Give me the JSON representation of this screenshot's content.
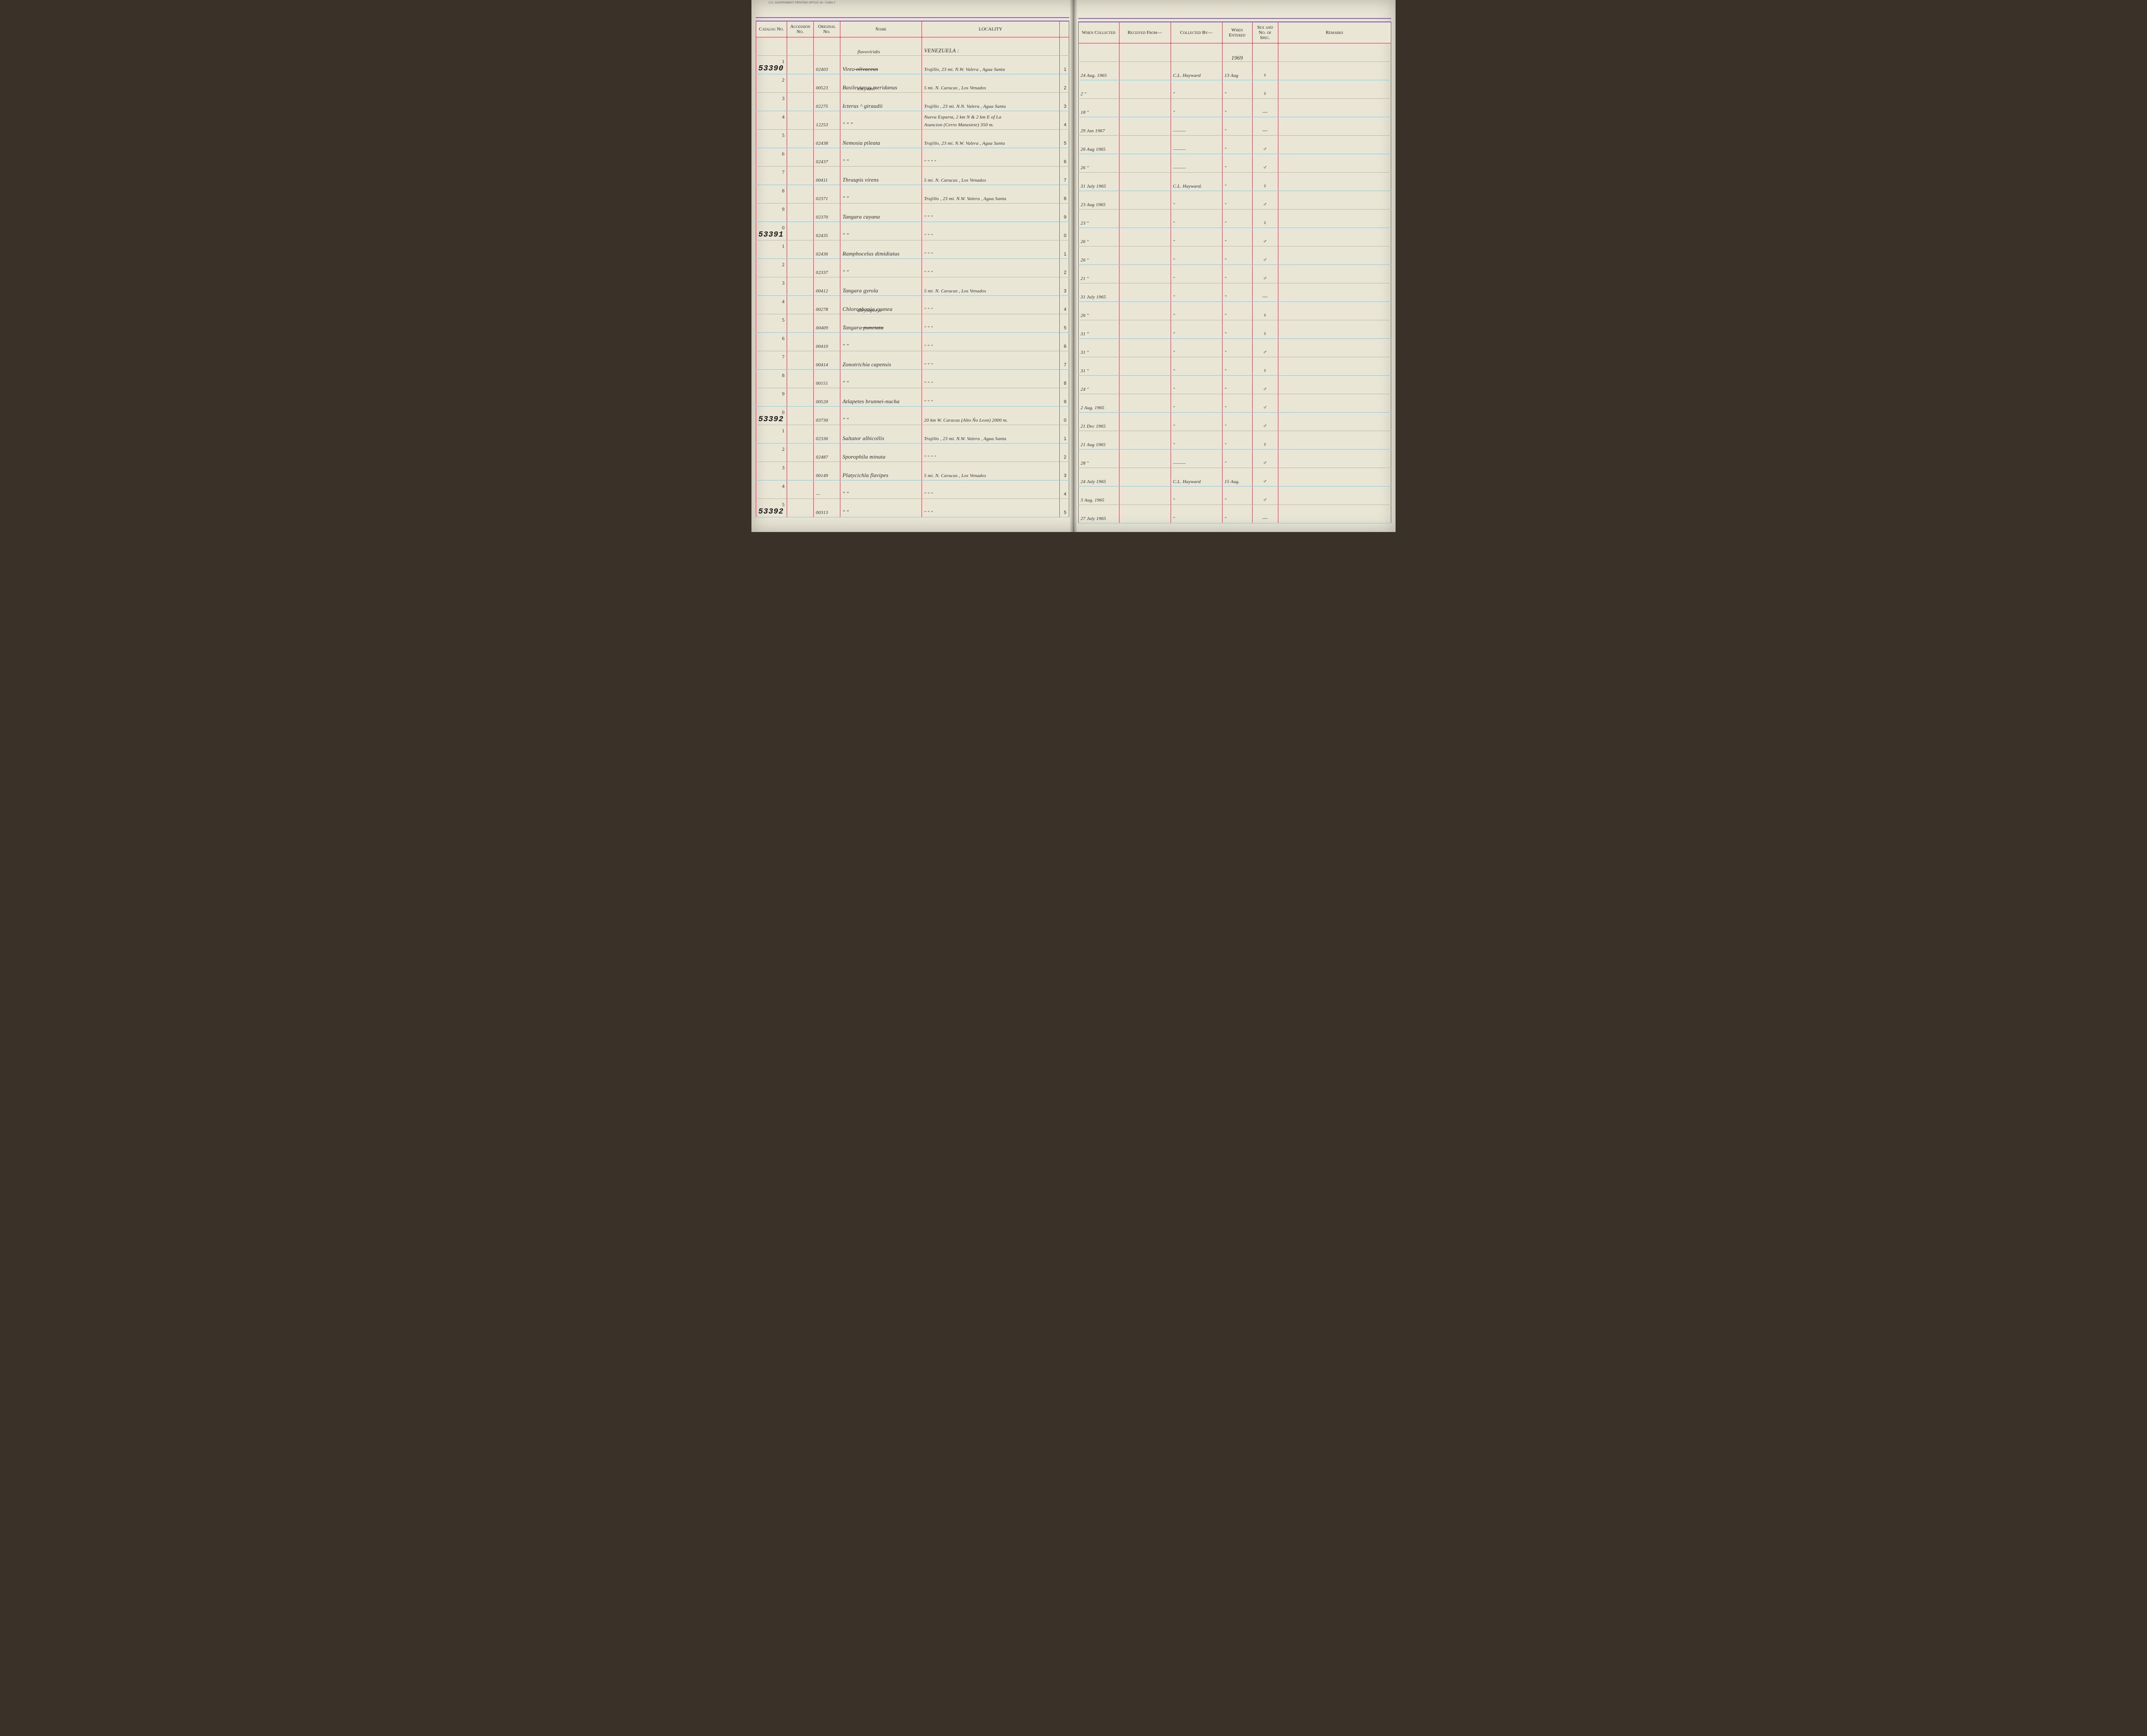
{
  "printer_line": "U.S. GOVERNMENT PRINTING OFFICE   16—72394-2",
  "left_headers": {
    "catalog": "Catalog\nNo.",
    "accession": "Accession\nNo.",
    "original": "Original\nNo.",
    "name": "Name",
    "locality": "LOCALITY",
    "count": ""
  },
  "right_headers": {
    "when_collected": "When\nCollected",
    "received_from": "Received From—",
    "collected_by": "Collected By—",
    "when_entered": "When\nEntered",
    "sex": "Sex and\nNo. of\nSpec.",
    "remarks": "Remarks"
  },
  "locality_header_note": "VENEZUELA :",
  "year_entered": "1969",
  "rows": [
    {
      "catalog": "53390",
      "digit": "1",
      "orig": "02403",
      "name_strike": "olivaceus",
      "name_top": "flavoviridis",
      "name": "Vireo",
      "locality": "Trujillo, 23 mi. N.W. Valera , Agua Santa",
      "ct": "1",
      "when": "24 Aug. 1965",
      "recv": "",
      "coll": "C.L. Hayward",
      "ent": "13 Aug",
      "sex": "♀"
    },
    {
      "catalog": "",
      "digit": "2",
      "orig": "00523",
      "name": "Basileuterus meridanus",
      "locality": "5 mi. N. Caracas , Los Venados",
      "ct": "2",
      "when": "2   \"",
      "recv": "",
      "coll": "\"",
      "ent": "\"",
      "sex": "♀"
    },
    {
      "catalog": "",
      "digit": "3",
      "orig": "02275",
      "name_top": "chrysater",
      "name": "Icterus ^ giraudii",
      "locality": "Trujillo , 23 mi. N.N. Valera , Agua Santa",
      "ct": "3",
      "when": "18  \"",
      "recv": "",
      "coll": "\"",
      "ent": "\"",
      "sex": "—"
    },
    {
      "catalog": "",
      "digit": "4",
      "orig": "12253",
      "name": "\"     \"     \"",
      "locality": "Nueva Esparta, 2 km N & 2 km E of La\nAsuncion (Cerro Matasiete) 350 m.",
      "ct": "4",
      "when": "29 Jan 1967",
      "recv": "",
      "coll": "———",
      "ent": "\"",
      "sex": "—"
    },
    {
      "catalog": "",
      "digit": "5",
      "orig": "02438",
      "name": "Nemosia pileata",
      "locality": "Trujillo, 23 mi. N.W. Valera , Agua Santa",
      "ct": "5",
      "when": "26 Aug 1965",
      "recv": "",
      "coll": "———",
      "ent": "\"",
      "sex": "♂"
    },
    {
      "catalog": "",
      "digit": "6",
      "orig": "02437",
      "name": "\"        \"",
      "locality": "\"             \"             \"           \"",
      "ct": "6",
      "when": "26   \"",
      "recv": "",
      "coll": "———",
      "ent": "\"",
      "sex": "♂"
    },
    {
      "catalog": "",
      "digit": "7",
      "orig": "00411",
      "name": "Thraupis virens",
      "locality": "5 mi. N. Caracas , Los Venados",
      "ct": "7",
      "when": "31 July 1965",
      "recv": "",
      "coll": "C.L. Hayward.",
      "ent": "\"",
      "sex": "♀"
    },
    {
      "catalog": "",
      "digit": "8",
      "orig": "02371",
      "name": "\"        \"",
      "locality": "Trujillo , 23 mi. N.W. Valera , Agua Santa",
      "ct": "8",
      "when": "23 Aug 1965",
      "recv": "",
      "coll": "\"",
      "ent": "\"",
      "sex": "♂"
    },
    {
      "catalog": "",
      "digit": "9",
      "orig": "02370",
      "name": "Tangara cayana",
      "locality": "\"             \"             \"",
      "ct": "9",
      "when": "23  \"",
      "recv": "",
      "coll": "\"",
      "ent": "\"",
      "sex": "♀"
    },
    {
      "catalog": "53391",
      "digit": "0",
      "orig": "02435",
      "name": "\"        \"",
      "locality": "\"             \"             \"",
      "ct": "0",
      "when": "26   \"",
      "recv": "",
      "coll": "\"",
      "ent": "\"",
      "sex": "♂"
    },
    {
      "catalog": "",
      "digit": "1",
      "orig": "02436",
      "name": "Ramphocelus dimidiatus",
      "locality": "\"             \"             \"",
      "ct": "1",
      "when": "26   \"",
      "recv": "",
      "coll": "\"",
      "ent": "\"",
      "sex": "♂"
    },
    {
      "catalog": "",
      "digit": "2",
      "orig": "02337",
      "name": "\"        \"",
      "locality": "\"             \"             \"",
      "ct": "2",
      "when": "21   \"",
      "recv": "",
      "coll": "\"",
      "ent": "\"",
      "sex": "♂"
    },
    {
      "catalog": "",
      "digit": "3",
      "orig": "00412",
      "name": "Tangara gyrola",
      "locality": "5 mi. N. Caracas , Los Venados",
      "ct": "3",
      "when": "31 July 1965",
      "recv": "",
      "coll": "\"",
      "ent": "\"",
      "sex": "—"
    },
    {
      "catalog": "",
      "digit": "4",
      "orig": "00278",
      "name": "Chlorophonia cyanea",
      "locality": "\"             \"             \"",
      "ct": "4",
      "when": "26   \"",
      "recv": "",
      "coll": "\"",
      "ent": "\"",
      "sex": "♀"
    },
    {
      "catalog": "",
      "digit": "5",
      "orig": "00409",
      "name_top": "chrysophrys",
      "name_strike": "punctata",
      "name": "Tangara",
      "locality": "\"             \"             \"",
      "ct": "5",
      "when": "31   \"",
      "recv": "",
      "coll": "\"",
      "ent": "\"",
      "sex": "♀"
    },
    {
      "catalog": "",
      "digit": "6",
      "orig": "00410",
      "name": "\"        \"",
      "locality": "\"             \"             \"",
      "ct": "6",
      "when": "31   \"",
      "recv": "",
      "coll": "\"",
      "ent": "\"",
      "sex": "♂"
    },
    {
      "catalog": "",
      "digit": "7",
      "orig": "00414",
      "name": "Zonotrichia capensis",
      "locality": "\"             \"             \"",
      "ct": "7",
      "when": "31   \"",
      "recv": "",
      "coll": "\"",
      "ent": "\"",
      "sex": "♀"
    },
    {
      "catalog": "",
      "digit": "8",
      "orig": "00151",
      "name": "\"        \"",
      "locality": "\"             \"             \"",
      "ct": "8",
      "when": "24   \"",
      "recv": "",
      "coll": "\"",
      "ent": "\"",
      "sex": "♂"
    },
    {
      "catalog": "",
      "digit": "9",
      "orig": "00520",
      "name": "Atlapetes brunnei-nucha",
      "locality": "\"             \"             \"",
      "ct": "9",
      "when": "2 Aug. 1965",
      "recv": "",
      "coll": "\"",
      "ent": "\"",
      "sex": "♂"
    },
    {
      "catalog": "53392",
      "digit": "0",
      "orig": "03730",
      "name": "\"        \"",
      "locality": "20 km W. Caracas (Alto Ño Leon) 2000 m.",
      "ct": "0",
      "when": "21 Dec 1965",
      "recv": "",
      "coll": "\"",
      "ent": "\"",
      "sex": "♂"
    },
    {
      "catalog": "",
      "digit": "1",
      "orig": "02336",
      "name": "Saltator albicollis",
      "locality": "Trujillo , 23 mi. N.W. Valera , Agua Santa",
      "ct": "1",
      "when": "21 Aug 1965",
      "recv": "",
      "coll": "\"",
      "ent": "\"",
      "sex": "♀"
    },
    {
      "catalog": "",
      "digit": "2",
      "orig": "02487",
      "name": "Sporophila minuta",
      "locality": "\"             \"             \"           \"",
      "ct": "2",
      "when": "28  \"",
      "recv": "",
      "coll": "———",
      "ent": "\"",
      "sex": "♂"
    },
    {
      "catalog": "",
      "digit": "3",
      "orig": "00149",
      "name": "Platycichla  flavipes",
      "locality": "5 mi. N. Caracas , Los Venados",
      "ct": "3",
      "when": "24 July 1965",
      "recv": "",
      "coll": "C.L. Hayward",
      "ent": "15 Aug.",
      "sex": "♂"
    },
    {
      "catalog": "",
      "digit": "4",
      "orig": "—",
      "name": "\"        \"",
      "locality": "\"             \"             \"",
      "ct": "4",
      "when": "3 Aug. 1965",
      "recv": "",
      "coll": "\"",
      "ent": "\"",
      "sex": "♂"
    },
    {
      "catalog": "53392",
      "digit": "5",
      "orig": "00313",
      "name": "\"        \"",
      "locality": "\"             \"             \"",
      "ct": "5",
      "when": "27 July 1965",
      "recv": "",
      "coll": "\"",
      "ent": "\"",
      "sex": "—"
    }
  ]
}
